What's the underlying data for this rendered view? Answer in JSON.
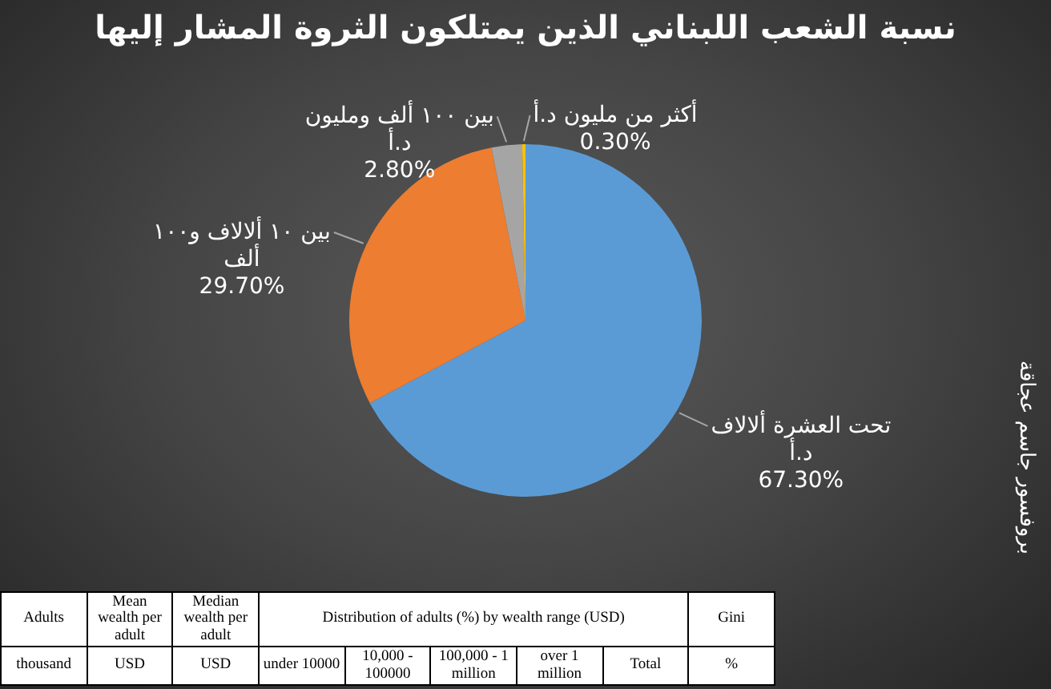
{
  "chart_data": {
    "type": "pie",
    "title": "نسبة الشعب اللبناني الذين يمتلكون الثروة المشار إليها",
    "categories": [
      "تحت العشرة ألالاف د.أ",
      "بين ١٠ ألالاف و١٠٠ ألف",
      "بين ١٠٠ ألف ومليون د.أ",
      "أكثر من مليون د.أ"
    ],
    "values": [
      67.3,
      29.7,
      2.8,
      0.3
    ],
    "colors": [
      "#5b9bd5",
      "#ed7d31",
      "#a5a5a5",
      "#ffc000"
    ],
    "value_labels": [
      "67.30%",
      "29.70%",
      "2.80%",
      "0.30%"
    ],
    "annotations": [
      "بروفسور جاسم عجاقة",
      "Adults",
      "Mean wealth per adult",
      "Median wealth per adult",
      "Distribution of adults (%) by wealth range (USD)",
      "Gini",
      "thousand",
      "USD",
      "USD",
      "under 10000",
      "10,000 - 100000",
      "100,000 - 1 million",
      "over 1 million",
      "Total",
      "%"
    ]
  }
}
